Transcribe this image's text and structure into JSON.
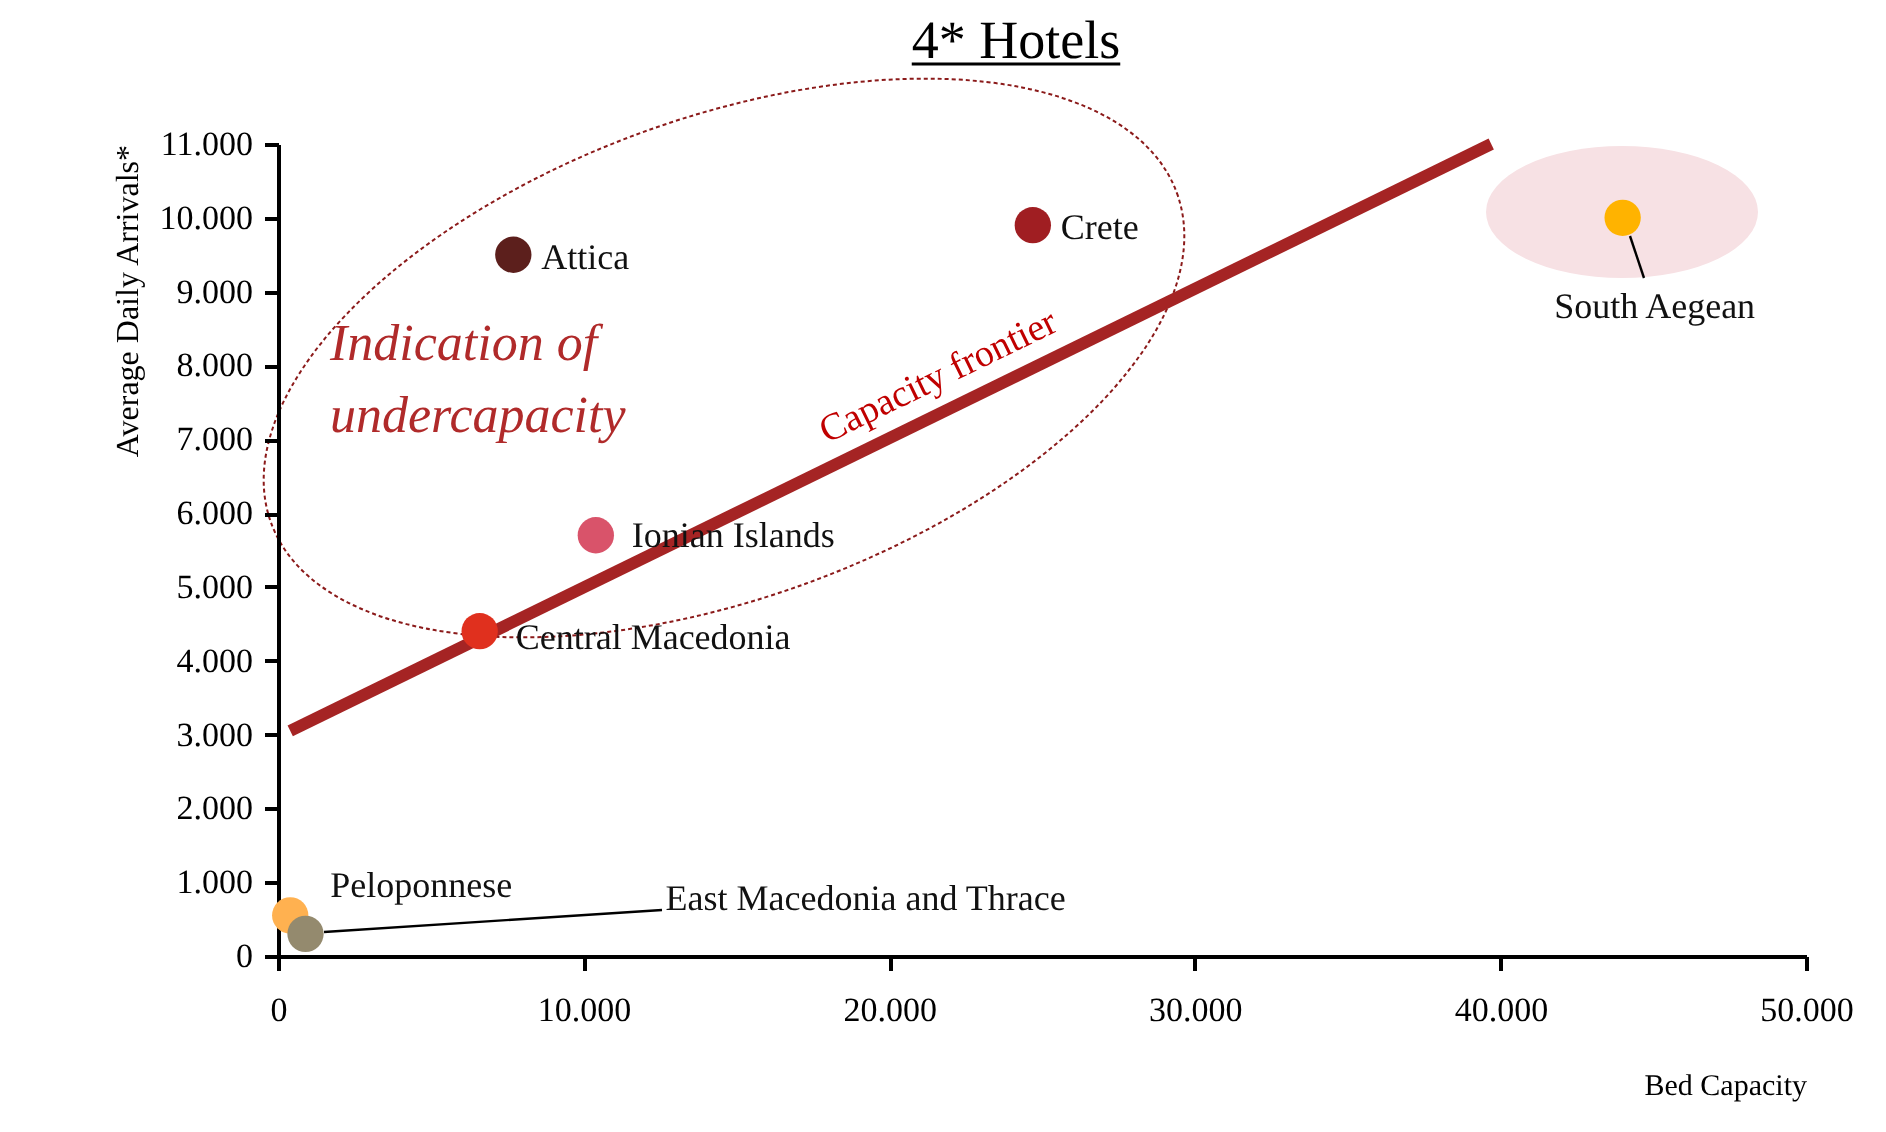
{
  "chart_data": {
    "type": "scatter",
    "title": "4* Hotels",
    "xlabel": "Bed Capacity",
    "ylabel": "Average Daily Arrivals*",
    "marker": "circle",
    "grid": false,
    "xlim": [
      0,
      50000
    ],
    "ylim": [
      0,
      11000
    ],
    "xticks": [
      0,
      {
        "value": 10000,
        "label": "10.000"
      },
      {
        "value": 20000,
        "label": "20.000"
      },
      {
        "value": 30000,
        "label": "30.000"
      },
      {
        "value": 40000,
        "label": "40.000"
      },
      {
        "value": 50000,
        "label": "50.000"
      }
    ],
    "yticks": [
      0,
      {
        "value": 1000,
        "label": "1.000"
      },
      {
        "value": 2000,
        "label": "2.000"
      },
      {
        "value": 3000,
        "label": "3.000"
      },
      {
        "value": 4000,
        "label": "4.000"
      },
      {
        "value": 5000,
        "label": "5.000"
      },
      {
        "value": 6000,
        "label": "6.000"
      },
      {
        "value": 7000,
        "label": "7.000"
      },
      {
        "value": 8000,
        "label": "8.000"
      },
      {
        "value": 9000,
        "label": "9.000"
      },
      {
        "value": 10000,
        "label": "10.000"
      },
      {
        "value": 11000,
        "label": "11.000"
      }
    ],
    "series": [
      {
        "type": "line",
        "color": "#a52424",
        "marker": "none",
        "x": [
          400,
          39700
        ],
        "values": [
          3050,
          11000
        ]
      },
      {
        "name": "Attica",
        "color": "#5c1f1c",
        "x": [
          7700
        ],
        "values": [
          9500
        ]
      },
      {
        "name": "Crete",
        "color": "#a01e22",
        "x": [
          24700
        ],
        "values": [
          9900
        ]
      },
      {
        "name": "South Aegean",
        "color": "#ffb300",
        "x": [
          44000
        ],
        "values": [
          10000
        ]
      },
      {
        "name": "Ionian Islands",
        "color": "#d9536a",
        "x": [
          10400
        ],
        "values": [
          5700
        ]
      },
      {
        "name": "Central Macedonia",
        "color": "#e0301e",
        "x": [
          6600
        ],
        "values": [
          4400
        ]
      },
      {
        "name": "Peloponnese",
        "color": "#ffb150",
        "x": [
          400
        ],
        "values": [
          550
        ]
      },
      {
        "name": "East Macedonia and Thrace",
        "color": "#948a6e",
        "x": [
          900
        ],
        "values": [
          300
        ]
      }
    ],
    "annotations": [
      "Indication of\nundercapacity",
      "Capacity frontier"
    ]
  }
}
